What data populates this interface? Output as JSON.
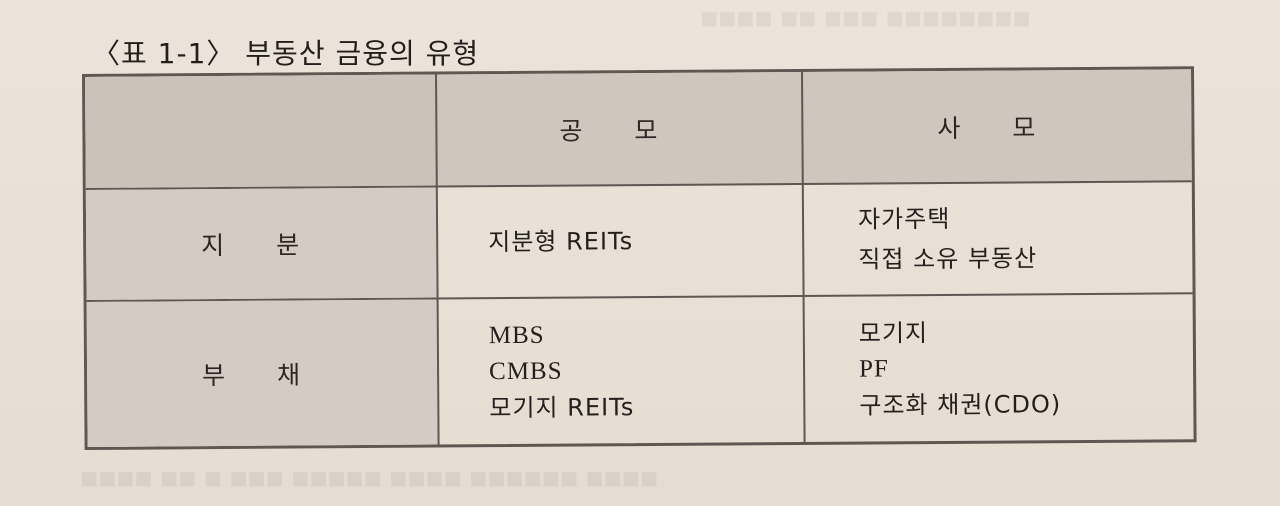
{
  "caption": "〈표 1-1〉 부동산 금융의 유형",
  "table": {
    "columns": [
      "",
      "공 모",
      "사 모"
    ],
    "rows": [
      {
        "label": "지 분",
        "public": [
          "지분형 REITs"
        ],
        "private": [
          "자가주택",
          "직접 소유 부동산"
        ]
      },
      {
        "label": "부 채",
        "public": [
          "MBS",
          "CMBS",
          "모기지 REITs"
        ],
        "private": [
          "모기지",
          "PF",
          "구조화 채권(CDO)"
        ]
      }
    ]
  },
  "colors": {
    "paper": "#e9e1d6",
    "header_fill": "#cfc7be",
    "border": "#5e5852"
  }
}
